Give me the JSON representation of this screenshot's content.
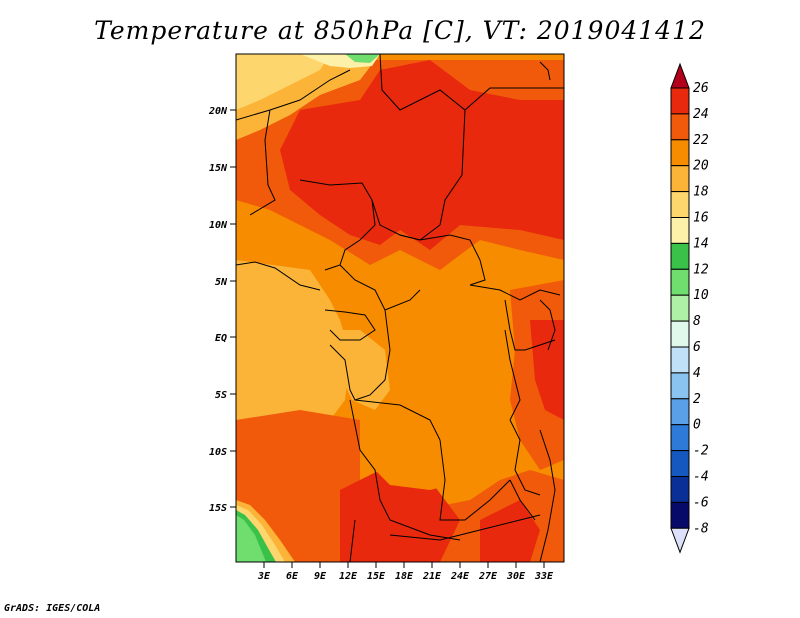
{
  "title": "Temperature at 850hPa [C], VT: 2019041412",
  "credit": "GrADS: IGES/COLA",
  "map": {
    "region": "Central Africa",
    "lon_range": [
      0,
      36
    ],
    "lat_range": [
      -20,
      24
    ],
    "lat_ticks": [
      "20N",
      "15N",
      "10N",
      "5N",
      "EQ",
      "5S",
      "10S",
      "15S"
    ],
    "lon_ticks": [
      "3E",
      "6E",
      "9E",
      "12E",
      "15E",
      "18E",
      "21E",
      "24E",
      "27E",
      "30E",
      "33E"
    ]
  },
  "colorbar": {
    "labels": [
      "26",
      "24",
      "22",
      "20",
      "18",
      "16",
      "14",
      "12",
      "10",
      "8",
      "6",
      "4",
      "2",
      "0",
      "-2",
      "-4",
      "-6",
      "-8"
    ],
    "colors": [
      "#b3001a",
      "#e8290e",
      "#f05a0a",
      "#f88c00",
      "#fbb438",
      "#fdd66e",
      "#fdf0a8",
      "#39c14a",
      "#6fde6f",
      "#aff0a7",
      "#e0f8ec",
      "#c0e0f8",
      "#8ac2f0",
      "#5aa0e8",
      "#2e7ad8",
      "#1458c0",
      "#0a3098",
      "#080a6a",
      "#dce0f8"
    ]
  }
}
